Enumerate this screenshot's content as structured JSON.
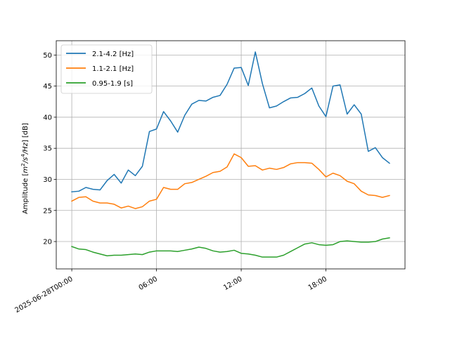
{
  "chart_data": {
    "type": "line",
    "title": "",
    "xlabel": "",
    "ylabel": "Amplitude [m²/s⁴/Hz] [dB]",
    "ylabel_parts": {
      "prefix": "Amplitude [",
      "m": "m",
      "sup2": "2",
      "s": "/s",
      "sup4": "4",
      "hz": "/Hz",
      "suffix": "] [dB]"
    },
    "x_unit": "hours since 2025-06-28T00:00",
    "xlim": [
      -1.1,
      23.6
    ],
    "ylim": [
      15.6,
      52.3
    ],
    "grid": true,
    "legend_position": "upper-left",
    "x_ticks": [
      {
        "value": 0,
        "label": "2025-06-28T00:00"
      },
      {
        "value": 6,
        "label": "06:00"
      },
      {
        "value": 12,
        "label": "12:00"
      },
      {
        "value": 18,
        "label": "18:00"
      }
    ],
    "y_ticks": [
      20,
      25,
      30,
      35,
      40,
      45,
      50
    ],
    "x": [
      0,
      0.5,
      1,
      1.5,
      2,
      2.5,
      3,
      3.5,
      4,
      4.5,
      5,
      5.5,
      6,
      6.5,
      7,
      7.5,
      8,
      8.5,
      9,
      9.5,
      10,
      10.5,
      11,
      11.5,
      12,
      12.5,
      13,
      13.5,
      14,
      14.5,
      15,
      15.5,
      16,
      16.5,
      17,
      17.5,
      18,
      18.5,
      19,
      19.5,
      20,
      20.5,
      21,
      21.5,
      22,
      22.5
    ],
    "series": [
      {
        "name": "2.1-4.2 [Hz]",
        "color": "#1f77b4",
        "values": [
          28.0,
          28.1,
          28.7,
          28.4,
          28.3,
          29.8,
          30.8,
          29.4,
          31.5,
          30.6,
          32.1,
          37.7,
          38.1,
          40.9,
          39.4,
          37.6,
          40.3,
          42.1,
          42.7,
          42.6,
          43.2,
          43.5,
          45.3,
          47.9,
          48.0,
          45.1,
          50.5,
          45.4,
          41.5,
          41.8,
          42.5,
          43.1,
          43.2,
          43.8,
          44.7,
          41.8,
          40.1,
          45.0,
          45.2,
          40.5,
          42.0,
          40.5,
          34.5,
          35.1,
          33.5,
          32.6
        ]
      },
      {
        "name": "1.1-2.1 [Hz]",
        "color": "#ff7f0e",
        "values": [
          26.5,
          27.1,
          27.2,
          26.5,
          26.2,
          26.2,
          26.0,
          25.4,
          25.7,
          25.3,
          25.6,
          26.5,
          26.8,
          28.7,
          28.4,
          28.4,
          29.3,
          29.5,
          30.0,
          30.5,
          31.1,
          31.3,
          32.0,
          34.1,
          33.5,
          32.1,
          32.2,
          31.5,
          31.8,
          31.6,
          31.9,
          32.5,
          32.7,
          32.7,
          32.6,
          31.6,
          30.4,
          31.0,
          30.6,
          29.7,
          29.3,
          28.1,
          27.5,
          27.4,
          27.1,
          27.4
        ]
      },
      {
        "name": "0.95-1.9 [s]",
        "color": "#2ca02c",
        "values": [
          19.2,
          18.8,
          18.7,
          18.3,
          18.0,
          17.7,
          17.8,
          17.8,
          17.9,
          18.0,
          17.9,
          18.3,
          18.5,
          18.5,
          18.5,
          18.4,
          18.6,
          18.8,
          19.1,
          18.9,
          18.5,
          18.3,
          18.4,
          18.6,
          18.1,
          18.0,
          17.8,
          17.5,
          17.5,
          17.5,
          17.8,
          18.4,
          19.0,
          19.6,
          19.8,
          19.5,
          19.4,
          19.5,
          20.0,
          20.1,
          20.0,
          19.9,
          19.9,
          20.0,
          20.4,
          20.6
        ]
      }
    ]
  }
}
